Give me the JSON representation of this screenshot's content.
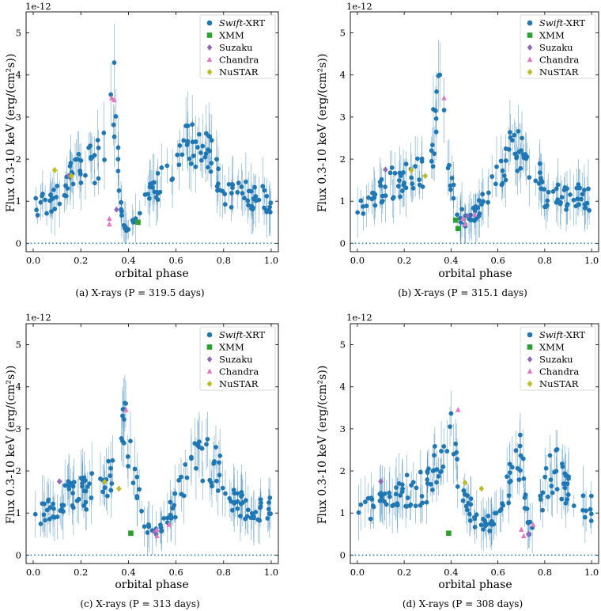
{
  "figure": {
    "colors": {
      "swift": "#1f77b4",
      "xmm": "#2ca02c",
      "suzaku": "#9467bd",
      "chandra": "#e377c2",
      "nustar": "#bcbd22"
    },
    "legend_entries": [
      {
        "key": "swift",
        "italic": "Swift",
        "rest": "-XRT",
        "marker": "circle"
      },
      {
        "key": "xmm",
        "italic": "",
        "rest": "XMM",
        "marker": "square"
      },
      {
        "key": "suzaku",
        "italic": "",
        "rest": "Suzaku",
        "marker": "diamond"
      },
      {
        "key": "chandra",
        "italic": "",
        "rest": "Chandra",
        "marker": "triangle"
      },
      {
        "key": "nustar",
        "italic": "",
        "rest": "NuSTAR",
        "marker": "diamond"
      }
    ]
  },
  "chart_data": [
    {
      "type": "scatter",
      "panel_caption": "(a) X-rays (P = 319.5 days)",
      "xlabel": "orbital phase",
      "ylabel": "Flux 0.3-10 keV (erg/(cm²s))",
      "offset_label": "1e-12",
      "xlim": [
        -0.03,
        1.03
      ],
      "ylim": [
        -0.2,
        5.5
      ],
      "xticks": [
        "0.0",
        "0.2",
        "0.4",
        "0.6",
        "0.8",
        "1.0"
      ],
      "yticks": [
        "0",
        "1",
        "2",
        "3",
        "4",
        "5"
      ],
      "legend_position": "top-right",
      "swift_profile": [
        [
          0.0,
          0.9
        ],
        [
          0.08,
          1.0
        ],
        [
          0.15,
          1.55
        ],
        [
          0.22,
          1.75
        ],
        [
          0.28,
          2.05
        ],
        [
          0.31,
          2.7
        ],
        [
          0.34,
          3.4
        ],
        [
          0.36,
          1.5
        ],
        [
          0.38,
          0.35
        ],
        [
          0.44,
          0.55
        ],
        [
          0.48,
          1.1
        ],
        [
          0.52,
          1.3
        ],
        [
          0.58,
          1.7
        ],
        [
          0.64,
          2.3
        ],
        [
          0.7,
          2.1
        ],
        [
          0.76,
          2.0
        ],
        [
          0.8,
          1.1
        ],
        [
          0.88,
          1.15
        ],
        [
          0.96,
          1.1
        ],
        [
          1.0,
          0.85
        ]
      ],
      "xmm": [
        [
          0.44,
          0.5
        ]
      ],
      "suzaku": [
        [
          0.15,
          1.6
        ],
        [
          0.35,
          0.8
        ]
      ],
      "chandra": [
        [
          0.32,
          0.58
        ],
        [
          0.32,
          0.45
        ],
        [
          0.33,
          3.45
        ],
        [
          0.34,
          3.4
        ]
      ],
      "nustar": [
        [
          0.09,
          1.74
        ],
        [
          0.16,
          1.6
        ]
      ]
    },
    {
      "type": "scatter",
      "panel_caption": "(b) X-rays (P = 315.1 days)",
      "xlabel": "orbital phase",
      "ylabel": "Flux 0.3-10 keV (erg/(cm²s))",
      "offset_label": "1e-12",
      "xlim": [
        -0.03,
        1.03
      ],
      "ylim": [
        -0.2,
        5.5
      ],
      "xticks": [
        "0.0",
        "0.2",
        "0.4",
        "0.6",
        "0.8",
        "1.0"
      ],
      "yticks": [
        "0",
        "1",
        "2",
        "3",
        "4",
        "5"
      ],
      "legend_position": "top-right",
      "swift_profile": [
        [
          0.0,
          0.9
        ],
        [
          0.08,
          1.1
        ],
        [
          0.15,
          1.45
        ],
        [
          0.22,
          1.55
        ],
        [
          0.28,
          1.75
        ],
        [
          0.32,
          2.4
        ],
        [
          0.35,
          3.3
        ],
        [
          0.38,
          2.1
        ],
        [
          0.42,
          0.8
        ],
        [
          0.47,
          0.5
        ],
        [
          0.5,
          0.7
        ],
        [
          0.56,
          1.2
        ],
        [
          0.62,
          1.7
        ],
        [
          0.68,
          2.4
        ],
        [
          0.74,
          2.0
        ],
        [
          0.8,
          1.2
        ],
        [
          0.88,
          1.1
        ],
        [
          0.96,
          1.1
        ],
        [
          1.0,
          1.05
        ]
      ],
      "xmm": [
        [
          0.42,
          0.55
        ],
        [
          0.43,
          0.35
        ]
      ],
      "suzaku": [
        [
          0.12,
          1.75
        ],
        [
          0.47,
          0.65
        ]
      ],
      "chandra": [
        [
          0.37,
          3.45
        ],
        [
          0.45,
          0.58
        ],
        [
          0.46,
          0.45
        ],
        [
          0.5,
          0.68
        ]
      ],
      "nustar": [
        [
          0.23,
          1.74
        ],
        [
          0.29,
          1.6
        ]
      ]
    },
    {
      "type": "scatter",
      "panel_caption": "(c) X-rays (P = 313 days)",
      "xlabel": "orbital phase",
      "ylabel": "Flux 0.3-10 keV (erg/(cm²s))",
      "offset_label": "1e-12",
      "xlim": [
        -0.03,
        1.03
      ],
      "ylim": [
        -0.2,
        5.5
      ],
      "xticks": [
        "0.0",
        "0.2",
        "0.4",
        "0.6",
        "0.8",
        "1.0"
      ],
      "yticks": [
        "0",
        "1",
        "2",
        "3",
        "4",
        "5"
      ],
      "legend_position": "top-right",
      "swift_profile": [
        [
          0.0,
          1.0
        ],
        [
          0.08,
          1.05
        ],
        [
          0.15,
          1.4
        ],
        [
          0.22,
          1.5
        ],
        [
          0.3,
          1.6
        ],
        [
          0.35,
          2.4
        ],
        [
          0.39,
          3.0
        ],
        [
          0.43,
          1.6
        ],
        [
          0.47,
          0.7
        ],
        [
          0.52,
          0.5
        ],
        [
          0.56,
          0.8
        ],
        [
          0.62,
          1.5
        ],
        [
          0.68,
          2.3
        ],
        [
          0.74,
          2.2
        ],
        [
          0.8,
          1.9
        ],
        [
          0.86,
          1.2
        ],
        [
          0.92,
          1.1
        ],
        [
          1.0,
          1.2
        ]
      ],
      "xmm": [
        [
          0.41,
          0.52
        ]
      ],
      "suzaku": [
        [
          0.11,
          1.75
        ],
        [
          0.51,
          0.55
        ]
      ],
      "chandra": [
        [
          0.39,
          3.45
        ],
        [
          0.52,
          0.6
        ],
        [
          0.52,
          0.45
        ],
        [
          0.57,
          0.72
        ]
      ],
      "nustar": [
        [
          0.3,
          1.74
        ],
        [
          0.36,
          1.58
        ]
      ]
    },
    {
      "type": "scatter",
      "panel_caption": "(d) X-rays (P = 308 days)",
      "xlabel": "orbital phase",
      "ylabel": "Flux 0.3-10 keV (erg/(cm²s))",
      "offset_label": "1e-12",
      "xlim": [
        -0.03,
        1.03
      ],
      "ylim": [
        -0.2,
        5.5
      ],
      "xticks": [
        "0.0",
        "0.2",
        "0.4",
        "0.6",
        "0.8",
        "1.0"
      ],
      "yticks": [
        "0",
        "1",
        "2",
        "3",
        "4",
        "5"
      ],
      "legend_position": "top-right",
      "swift_profile": [
        [
          0.0,
          1.0
        ],
        [
          0.08,
          1.1
        ],
        [
          0.15,
          1.3
        ],
        [
          0.22,
          1.6
        ],
        [
          0.3,
          1.6
        ],
        [
          0.36,
          2.5
        ],
        [
          0.4,
          3.0
        ],
        [
          0.44,
          1.5
        ],
        [
          0.5,
          0.9
        ],
        [
          0.55,
          0.7
        ],
        [
          0.6,
          0.9
        ],
        [
          0.66,
          1.9
        ],
        [
          0.7,
          2.3
        ],
        [
          0.73,
          0.6
        ],
        [
          0.78,
          1.3
        ],
        [
          0.84,
          2.1
        ],
        [
          0.9,
          1.6
        ],
        [
          0.96,
          1.2
        ],
        [
          1.0,
          1.1
        ]
      ],
      "xmm": [
        [
          0.39,
          0.52
        ]
      ],
      "suzaku": [
        [
          0.1,
          1.75
        ],
        [
          0.73,
          0.5
        ]
      ],
      "chandra": [
        [
          0.43,
          3.45
        ],
        [
          0.7,
          0.6
        ],
        [
          0.71,
          0.45
        ],
        [
          0.75,
          0.72
        ]
      ],
      "nustar": [
        [
          0.46,
          1.72
        ],
        [
          0.53,
          1.58
        ]
      ]
    }
  ]
}
